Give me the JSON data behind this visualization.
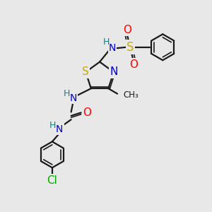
{
  "bg_color": "#e8e8e8",
  "bond_color": "#1a1a1a",
  "colors": {
    "N": "#0000cc",
    "S": "#ccaa00",
    "O": "#ff0000",
    "Cl": "#00aa00",
    "H": "#008888",
    "C": "#1a1a1a"
  }
}
